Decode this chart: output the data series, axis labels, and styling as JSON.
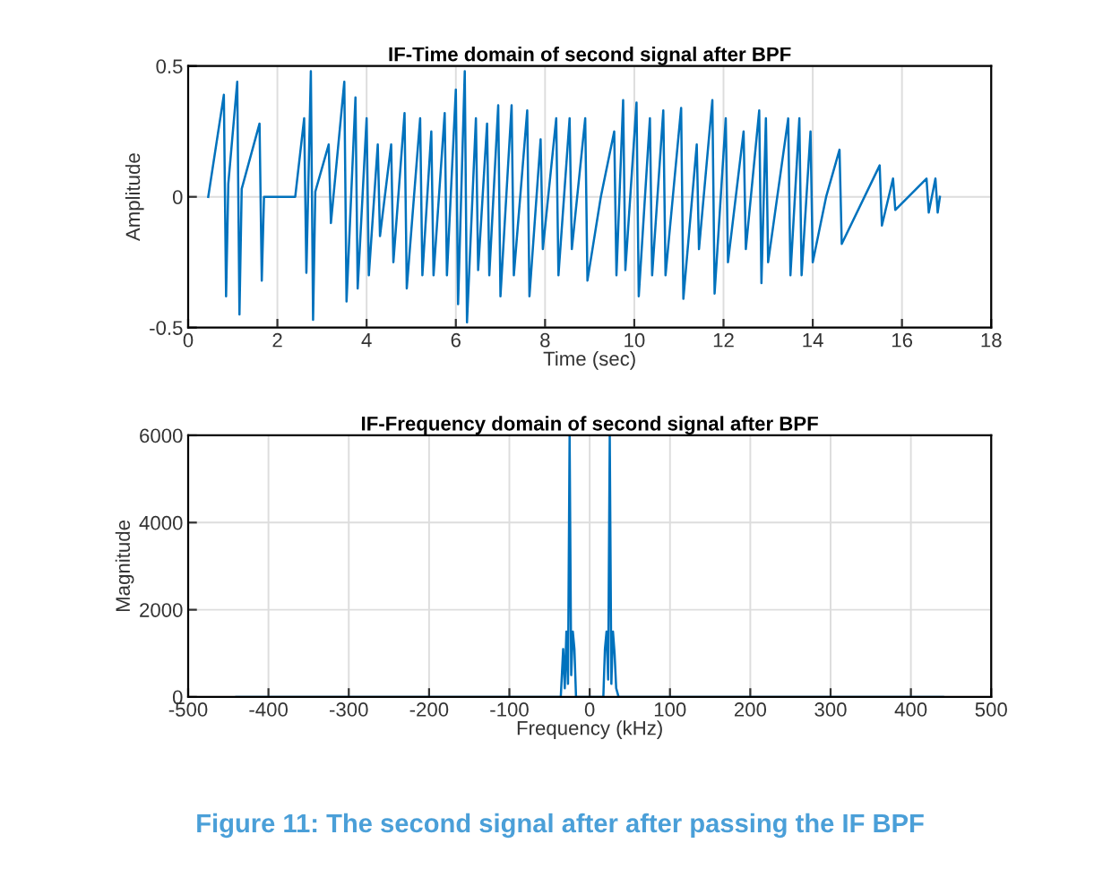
{
  "chart_data": [
    {
      "type": "line",
      "title": "IF-Time domain of second signal after BPF",
      "xlabel": "Time (sec)",
      "ylabel": "Amplitude",
      "xlim": [
        0,
        18
      ],
      "xticks": [
        0,
        2,
        4,
        6,
        8,
        10,
        12,
        14,
        16,
        18
      ],
      "ylim": [
        -0.5,
        0.5
      ],
      "yticks": [
        -0.5,
        0,
        0.5
      ],
      "grid": true,
      "series": [
        {
          "color": "#0072bd",
          "x": [
            0.45,
            0.8,
            0.85,
            0.9,
            1.1,
            1.15,
            1.2,
            1.6,
            1.65,
            1.7,
            2.4,
            2.6,
            2.65,
            2.75,
            2.8,
            2.85,
            3.15,
            3.2,
            3.5,
            3.55,
            3.75,
            3.8,
            4.0,
            4.05,
            4.25,
            4.3,
            4.55,
            4.6,
            4.85,
            4.9,
            5.2,
            5.25,
            5.45,
            5.5,
            5.75,
            5.8,
            6.0,
            6.05,
            6.2,
            6.25,
            6.45,
            6.5,
            6.7,
            6.75,
            6.95,
            7.0,
            7.25,
            7.3,
            7.6,
            7.65,
            7.9,
            7.95,
            8.25,
            8.3,
            8.55,
            8.6,
            8.9,
            8.95,
            9.25,
            9.55,
            9.6,
            9.75,
            9.8,
            10.05,
            10.1,
            10.35,
            10.4,
            10.65,
            10.7,
            11.05,
            11.1,
            11.4,
            11.45,
            11.75,
            11.8,
            12.05,
            12.1,
            12.45,
            12.5,
            12.8,
            12.85,
            12.95,
            13.0,
            13.45,
            13.5,
            13.7,
            13.75,
            13.95,
            14.0,
            14.3,
            14.6,
            14.65,
            15.5,
            15.55,
            15.8,
            15.85,
            16.55,
            16.6,
            16.75,
            16.8,
            16.85
          ],
          "values": [
            0,
            0.39,
            -0.38,
            0.05,
            0.44,
            -0.45,
            0.03,
            0.28,
            -0.32,
            0,
            0,
            0.3,
            -0.29,
            0.48,
            -0.47,
            0.02,
            0.2,
            -0.1,
            0.44,
            -0.4,
            0.38,
            -0.35,
            0.3,
            -0.3,
            0.2,
            -0.15,
            0.2,
            -0.25,
            0.32,
            -0.35,
            0.3,
            -0.3,
            0.25,
            -0.3,
            0.32,
            -0.3,
            0.41,
            -0.41,
            0.48,
            -0.48,
            0.3,
            -0.28,
            0.28,
            -0.3,
            0.35,
            -0.38,
            0.35,
            -0.3,
            0.33,
            -0.38,
            0.22,
            -0.2,
            0.3,
            -0.3,
            0.3,
            -0.2,
            0.3,
            -0.32,
            0,
            0.25,
            -0.3,
            0.37,
            -0.28,
            0.36,
            -0.38,
            0.3,
            -0.3,
            0.33,
            -0.3,
            0.34,
            -0.39,
            0.2,
            -0.2,
            0.37,
            -0.37,
            0.3,
            -0.25,
            0.25,
            -0.2,
            0.33,
            -0.33,
            0.3,
            -0.25,
            0.3,
            -0.3,
            0.3,
            -0.3,
            0.25,
            -0.25,
            0,
            0.18,
            -0.18,
            0.12,
            -0.11,
            0.07,
            -0.05,
            0.07,
            -0.06,
            0.07,
            -0.06,
            0
          ]
        }
      ]
    },
    {
      "type": "line",
      "title": "IF-Frequency domain of second signal after BPF",
      "xlabel": "Frequency (kHz)",
      "ylabel": "Magnitude",
      "xlim": [
        -500,
        500
      ],
      "xticks": [
        -500,
        -400,
        -300,
        -200,
        -100,
        0,
        100,
        200,
        300,
        400,
        500
      ],
      "ylim": [
        0,
        6000
      ],
      "yticks": [
        0,
        2000,
        4000,
        6000
      ],
      "grid": true,
      "annotations": [
        "Figure 11: The second signal after after passing the IF BPF"
      ],
      "series": [
        {
          "color": "#0072bd",
          "x": [
            -440,
            -36,
            -33,
            -31,
            -29,
            -27,
            -25,
            -23,
            -21,
            -19,
            -17,
            17,
            19,
            21,
            23,
            25,
            27,
            29,
            31,
            33,
            36,
            440
          ],
          "values": [
            0,
            0,
            1100,
            200,
            1500,
            300,
            6000,
            500,
            1500,
            1100,
            0,
            0,
            1100,
            1500,
            400,
            6000,
            300,
            1500,
            1000,
            200,
            0,
            0
          ]
        }
      ]
    }
  ]
}
